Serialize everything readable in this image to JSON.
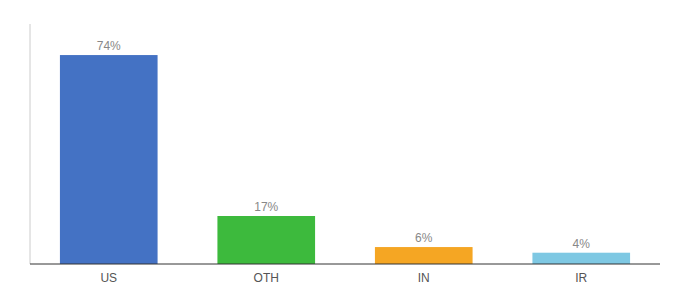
{
  "chart_data": {
    "type": "bar",
    "categories": [
      "US",
      "OTH",
      "IN",
      "IR"
    ],
    "values": [
      74,
      17,
      6,
      4
    ],
    "value_labels": [
      "74%",
      "17%",
      "6%",
      "4%"
    ],
    "colors": [
      "#4472c4",
      "#3dba3d",
      "#f5a623",
      "#7ec8e3"
    ],
    "ylim": [
      0,
      85
    ],
    "data_labels": true,
    "tick_labels": "x",
    "grid": false
  }
}
